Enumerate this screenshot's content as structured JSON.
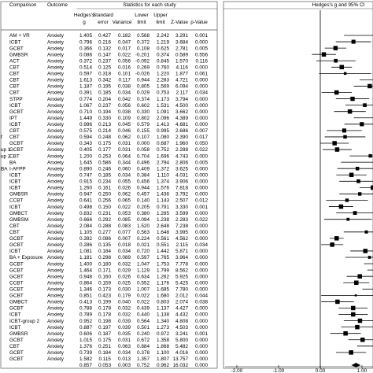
{
  "chart_data": {
    "type": "forest",
    "title": "Hedges's g and 95% CI",
    "stats_header": "Statistics for each study",
    "columns": {
      "comparison": "Comparison",
      "outcome": "Outcome",
      "g": [
        "Hedges's",
        "g"
      ],
      "se": [
        "Standard",
        "error"
      ],
      "variance": "Variance",
      "lower": [
        "Lower",
        "limit"
      ],
      "upper": [
        "Upper",
        "limit"
      ],
      "z": "Z-Value",
      "p": "p-Value"
    },
    "axis_ticks": [
      -2.0,
      -1.0,
      0.0,
      1.0
    ],
    "axis_tick_labels": [
      "-2.00",
      "-1.00",
      "0.00",
      "1.00"
    ],
    "xlim": [
      -2.0,
      1.0
    ],
    "left_edge_fragments": [
      {
        "row": 16,
        "text": "f"
      },
      {
        "row": 18,
        "text": "up 1"
      },
      {
        "row": 19,
        "text": "up 2"
      },
      {
        "row": 21,
        "text": "BA"
      }
    ],
    "rows": [
      {
        "comparison": "AM + VR",
        "outcome": "Anxiety",
        "g": "1.405",
        "se": "0.427",
        "variance": "0.182",
        "lower": "0.568",
        "upper": "2.242",
        "z": "3.291",
        "p": "0.001"
      },
      {
        "comparison": "ICBT",
        "outcome": "Anxiety",
        "g": "0.796",
        "se": "0.216",
        "variance": "0.047",
        "lower": "0.372",
        "upper": "1.219",
        "z": "3.684",
        "p": "0.000"
      },
      {
        "comparison": "GCBT",
        "outcome": "Anxiety",
        "g": "0.366",
        "se": "0.132",
        "variance": "0.017",
        "lower": "0.108",
        "upper": "0.625",
        "z": "2.781",
        "p": "0.005"
      },
      {
        "comparison": "GMBSR",
        "outcome": "Anxiety",
        "g": "0.086",
        "se": "0.147",
        "variance": "0.022",
        "lower": "-0.201",
        "upper": "0.374",
        "z": "0.589",
        "p": "0.556"
      },
      {
        "comparison": "ACT",
        "outcome": "Anxiety",
        "g": "0.372",
        "se": "0.237",
        "variance": "0.056",
        "lower": "-0.092",
        "upper": "0.845",
        "z": "1.570",
        "p": "0.116"
      },
      {
        "comparison": "CBT",
        "outcome": "Anxiety",
        "g": "0.514",
        "se": "0.125",
        "variance": "0.016",
        "lower": "0.269",
        "upper": "0.760",
        "z": "4.116",
        "p": "0.000"
      },
      {
        "comparison": "CBT",
        "outcome": "Anxiety",
        "g": "0.597",
        "se": "0.318",
        "variance": "0.101",
        "lower": "-0.026",
        "upper": "1.220",
        "z": "1.877",
        "p": "0.061"
      },
      {
        "comparison": "CBT",
        "outcome": "Anxiety",
        "g": "1.613",
        "se": "0.342",
        "variance": "0.117",
        "lower": "0.944",
        "upper": "2.283",
        "z": "4.721",
        "p": "0.000"
      },
      {
        "comparison": "CBT",
        "outcome": "Anxiety",
        "g": "1.187",
        "se": "0.195",
        "variance": "0.038",
        "lower": "0.805",
        "upper": "1.569",
        "z": "6.094",
        "p": "0.000"
      },
      {
        "comparison": "CBT",
        "outcome": "Anxiety",
        "g": "0.391",
        "se": "0.185",
        "variance": "0.034",
        "lower": "0.029",
        "upper": "0.753",
        "z": "2.117",
        "p": "0.034"
      },
      {
        "comparison": "STPP",
        "outcome": "Anxiety",
        "g": "0.774",
        "se": "0.204",
        "variance": "0.042",
        "lower": "0.374",
        "upper": "1.173",
        "z": "3.794",
        "p": "0.000"
      },
      {
        "comparison": "ICBT",
        "outcome": "Anxiety",
        "g": "1.067",
        "se": "0.237",
        "variance": "0.056",
        "lower": "0.602",
        "upper": "1.531",
        "z": "4.500",
        "p": "0.000"
      },
      {
        "comparison": "GCBT",
        "outcome": "Anxiety",
        "g": "0.710",
        "se": "0.194",
        "variance": "0.038",
        "lower": "0.330",
        "upper": "1.091",
        "z": "3.662",
        "p": "0.000"
      },
      {
        "comparison": "IPT",
        "outcome": "Anxiety",
        "g": "1.449",
        "se": "0.330",
        "variance": "0.109",
        "lower": "0.802",
        "upper": "2.096",
        "z": "4.389",
        "p": "0.000"
      },
      {
        "comparison": "ICBT",
        "outcome": "Anxiety",
        "g": "0.996",
        "se": "0.213",
        "variance": "0.045",
        "lower": "0.579",
        "upper": "1.413",
        "z": "4.681",
        "p": "0.000"
      },
      {
        "comparison": "CBT",
        "outcome": "Anxiety",
        "g": "0.575",
        "se": "0.214",
        "variance": "0.046",
        "lower": "0.155",
        "upper": "0.995",
        "z": "2.686",
        "p": "0.007"
      },
      {
        "comparison": "CBT",
        "outcome": "Anxiety",
        "g": "0.594",
        "se": "0.248",
        "variance": "0.062",
        "lower": "0.107",
        "upper": "1.080",
        "z": "2.390",
        "p": "0.017"
      },
      {
        "comparison": "GCBT",
        "outcome": "Anxiety",
        "g": "0.343",
        "se": "0.175",
        "variance": "0.031",
        "lower": "0.000",
        "upper": "0.687",
        "z": "1.960",
        "p": "0.050"
      },
      {
        "comparison": "GCBT",
        "outcome": "Anxiety",
        "g": "0.405",
        "se": "0.177",
        "variance": "0.031",
        "lower": "0.058",
        "upper": "0.752",
        "z": "2.288",
        "p": "0.022"
      },
      {
        "comparison": "CBT",
        "outcome": "Anxiety",
        "g": "1.200",
        "se": "0.253",
        "variance": "0.064",
        "lower": "0.704",
        "upper": "1.696",
        "z": "4.743",
        "p": "0.000"
      },
      {
        "comparison": "BA",
        "outcome": "Anxiety",
        "g": "1.645",
        "se": "0.586",
        "variance": "0.344",
        "lower": "0.496",
        "upper": "2.794",
        "z": "2.806",
        "p": "0.005"
      },
      {
        "comparison": "I-AFPP",
        "outcome": "Anxiety",
        "g": "0.890",
        "se": "0.246",
        "variance": "0.060",
        "lower": "0.409",
        "upper": "1.372",
        "z": "3.625",
        "p": "0.000"
      },
      {
        "comparison": "ICBT",
        "outcome": "Anxiety",
        "g": "0.747",
        "se": "0.185",
        "variance": "0.034",
        "lower": "0.384",
        "upper": "1.110",
        "z": "4.031",
        "p": "0.000"
      },
      {
        "comparison": "ICBT",
        "outcome": "Anxiety",
        "g": "0.915",
        "se": "0.234",
        "variance": "0.055",
        "lower": "0.456",
        "upper": "1.374",
        "z": "3.906",
        "p": "0.000"
      },
      {
        "comparison": "ICBT",
        "outcome": "Anxiety",
        "g": "1.260",
        "se": "0.161",
        "variance": "0.026",
        "lower": "0.944",
        "upper": "1.576",
        "z": "7.818",
        "p": "0.000"
      },
      {
        "comparison": "GMBSR",
        "outcome": "Anxiety",
        "g": "0.947",
        "se": "0.250",
        "variance": "0.062",
        "lower": "0.457",
        "upper": "1.436",
        "z": "3.792",
        "p": "0.000"
      },
      {
        "comparison": "CCBT",
        "outcome": "Anxiety",
        "g": "0.641",
        "se": "0.256",
        "variance": "0.065",
        "lower": "0.140",
        "upper": "1.143",
        "z": "2.507",
        "p": "0.012"
      },
      {
        "comparison": "ICBT",
        "outcome": "Anxiety",
        "g": "0.498",
        "se": "0.150",
        "variance": "0.022",
        "lower": "0.205",
        "upper": "0.791",
        "z": "3.330",
        "p": "0.001"
      },
      {
        "comparison": "GMBCT",
        "outcome": "Anxiety",
        "g": "0.832",
        "se": "0.231",
        "variance": "0.053",
        "lower": "0.380",
        "upper": "1.285",
        "z": "3.599",
        "p": "0.000"
      },
      {
        "comparison": "GMBSM",
        "outcome": "Anxiety",
        "g": "0.666",
        "se": "0.292",
        "variance": "0.085",
        "lower": "0.094",
        "upper": "1.238",
        "z": "2.283",
        "p": "0.022"
      },
      {
        "comparison": "CBT",
        "outcome": "Anxiety",
        "g": "2.084",
        "se": "0.288",
        "variance": "0.083",
        "lower": "1.520",
        "upper": "2.648",
        "z": "7.238",
        "p": "0.000"
      },
      {
        "comparison": "CBT",
        "outcome": "Anxiety",
        "g": "1.105",
        "se": "0.277",
        "variance": "0.077",
        "lower": "0.563",
        "upper": "1.648",
        "z": "3.995",
        "p": "0.000"
      },
      {
        "comparison": "GCBT",
        "outcome": "Anxiety",
        "g": "0.392",
        "se": "0.086",
        "variance": "0.007",
        "lower": "0.224",
        "upper": "0.561",
        "z": "4.562",
        "p": "0.000"
      },
      {
        "comparison": "GCBT",
        "outcome": "Anxiety",
        "g": "0.286",
        "se": "0.135",
        "variance": "0.018",
        "lower": "0.021",
        "upper": "0.551",
        "z": "2.115",
        "p": "0.034"
      },
      {
        "comparison": "ICBT",
        "outcome": "Anxiety",
        "g": "1.081",
        "se": "0.184",
        "variance": "0.034",
        "lower": "0.720",
        "upper": "1.442",
        "z": "5.871",
        "p": "0.000"
      },
      {
        "comparison": "BA + Exposure",
        "outcome": "Anxiety",
        "g": "1.181",
        "se": "0.298",
        "variance": "0.089",
        "lower": "0.597",
        "upper": "1.765",
        "z": "3.964",
        "p": "0.000"
      },
      {
        "comparison": "GCBT",
        "outcome": "Anxiety",
        "g": "1.400",
        "se": "0.180",
        "variance": "0.032",
        "lower": "1.047",
        "upper": "1.753",
        "z": "7.778",
        "p": "0.000"
      },
      {
        "comparison": "GCBT",
        "outcome": "Anxiety",
        "g": "1.464",
        "se": "0.171",
        "variance": "0.029",
        "lower": "1.129",
        "upper": "1.799",
        "z": "8.562",
        "p": "0.000"
      },
      {
        "comparison": "GCBT",
        "outcome": "Anxiety",
        "g": "0.948",
        "se": "0.160",
        "variance": "0.026",
        "lower": "0.634",
        "upper": "1.262",
        "z": "5.925",
        "p": "0.000"
      },
      {
        "comparison": "CCBT",
        "outcome": "Anxiety",
        "g": "0.864",
        "se": "0.159",
        "variance": "0.025",
        "lower": "0.552",
        "upper": "1.176",
        "z": "5.425",
        "p": "0.000"
      },
      {
        "comparison": "GCBT",
        "outcome": "Anxiety",
        "g": "1.346",
        "se": "0.173",
        "variance": "0.030",
        "lower": "1.007",
        "upper": "1.685",
        "z": "7.780",
        "p": "0.000"
      },
      {
        "comparison": "GCBT",
        "outcome": "Anxiety",
        "g": "0.851",
        "se": "0.423",
        "variance": "0.179",
        "lower": "0.022",
        "upper": "1.680",
        "z": "2.012",
        "p": "0.044"
      },
      {
        "comparison": "GMBCT",
        "outcome": "Anxiety",
        "g": "0.413",
        "se": "0.199",
        "variance": "0.040",
        "lower": "0.022",
        "upper": "0.803",
        "z": "2.074",
        "p": "0.038"
      },
      {
        "comparison": "GCBT",
        "outcome": "Anxiety",
        "g": "0.788",
        "se": "0.178",
        "variance": "0.032",
        "lower": "0.439",
        "upper": "1.137",
        "z": "4.427",
        "p": "0.000"
      },
      {
        "comparison": "ICBT",
        "outcome": "Anxiety",
        "g": "0.789",
        "se": "0.178",
        "variance": "0.032",
        "lower": "0.440",
        "upper": "1.138",
        "z": "4.432",
        "p": "0.000"
      },
      {
        "comparison": "ICBT-group 2",
        "outcome": "Anxiety",
        "g": "0.952",
        "se": "0.198",
        "variance": "0.039",
        "lower": "0.564",
        "upper": "1.340",
        "z": "4.808",
        "p": "0.000"
      },
      {
        "comparison": "ICBT",
        "outcome": "Anxiety",
        "g": "0.887",
        "se": "0.197",
        "variance": "0.039",
        "lower": "0.501",
        "upper": "1.273",
        "z": "4.503",
        "p": "0.000"
      },
      {
        "comparison": "GMBSR",
        "outcome": "Anxiety",
        "g": "0.606",
        "se": "0.187",
        "variance": "0.035",
        "lower": "0.240",
        "upper": "0.972",
        "z": "3.241",
        "p": "0.001"
      },
      {
        "comparison": "GCBT",
        "outcome": "Anxiety",
        "g": "1.015",
        "se": "0.175",
        "variance": "0.031",
        "lower": "0.672",
        "upper": "1.358",
        "z": "5.800",
        "p": "0.000"
      },
      {
        "comparison": "CBT",
        "outcome": "Anxiety",
        "g": "1.376",
        "se": "0.251",
        "variance": "0.063",
        "lower": "0.884",
        "upper": "1.868",
        "z": "5.482",
        "p": "0.000"
      },
      {
        "comparison": "GCBT",
        "outcome": "Anxiety",
        "g": "0.739",
        "se": "0.184",
        "variance": "0.034",
        "lower": "0.378",
        "upper": "1.100",
        "z": "4.016",
        "p": "0.000"
      },
      {
        "comparison": "GCBT",
        "outcome": "Anxiety",
        "g": "1.582",
        "se": "0.115",
        "variance": "0.013",
        "lower": "1.357",
        "upper": "1.807",
        "z": "13.757",
        "p": "0.000"
      },
      {
        "comparison": "",
        "outcome": "",
        "g": "0.857",
        "se": "0.053",
        "variance": "0.003",
        "lower": "0.752",
        "upper": "0.962",
        "z": "16.032",
        "p": "0.000"
      }
    ]
  }
}
